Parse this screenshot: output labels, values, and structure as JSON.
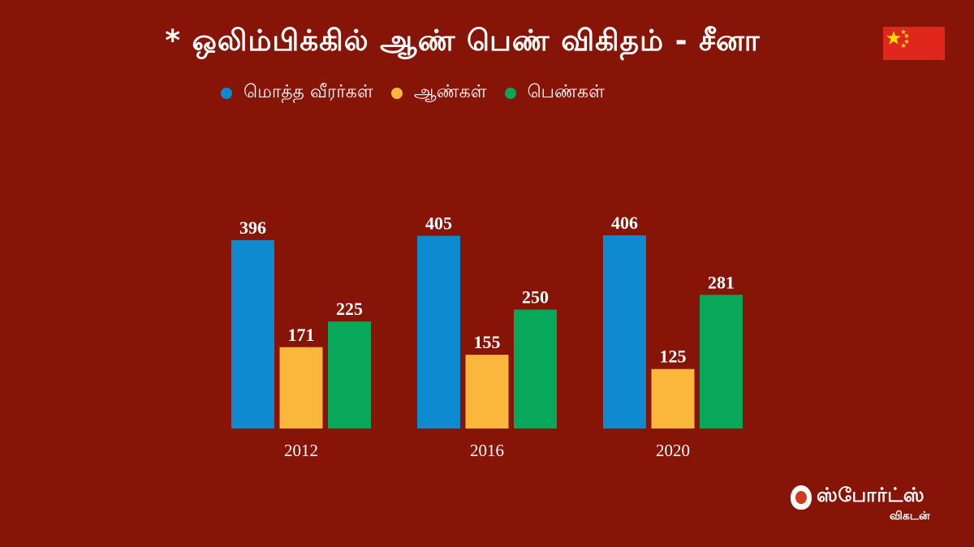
{
  "title": "* ஒலிம்பிக்கில் ஆண் பெண் விகிதம் - சீனா",
  "flag": {
    "name": "china-flag",
    "bg": "#e0271e",
    "star": "#ffde00"
  },
  "legend": [
    {
      "label": "மொத்த வீரர்கள்",
      "color": "#0d8ad0"
    },
    {
      "label": "ஆண்கள்",
      "color": "#fbb73c"
    },
    {
      "label": "பெண்கள்",
      "color": "#07a859"
    }
  ],
  "chart_data": {
    "type": "bar",
    "categories": [
      "2012",
      "2016",
      "2020"
    ],
    "series": [
      {
        "name": "மொத்த வீரர்கள்",
        "color": "#0d8ad0",
        "values": [
          396,
          405,
          406
        ]
      },
      {
        "name": "ஆண்கள்",
        "color": "#fbb73c",
        "values": [
          171,
          155,
          125
        ]
      },
      {
        "name": "பெண்கள்",
        "color": "#07a859",
        "values": [
          225,
          250,
          281
        ]
      }
    ],
    "ylim": [
      0,
      406
    ],
    "grid": false,
    "legend_position": "top"
  },
  "logo": {
    "main": "ஸ்போர்ட்ஸ்",
    "sub": "விகடன்"
  }
}
